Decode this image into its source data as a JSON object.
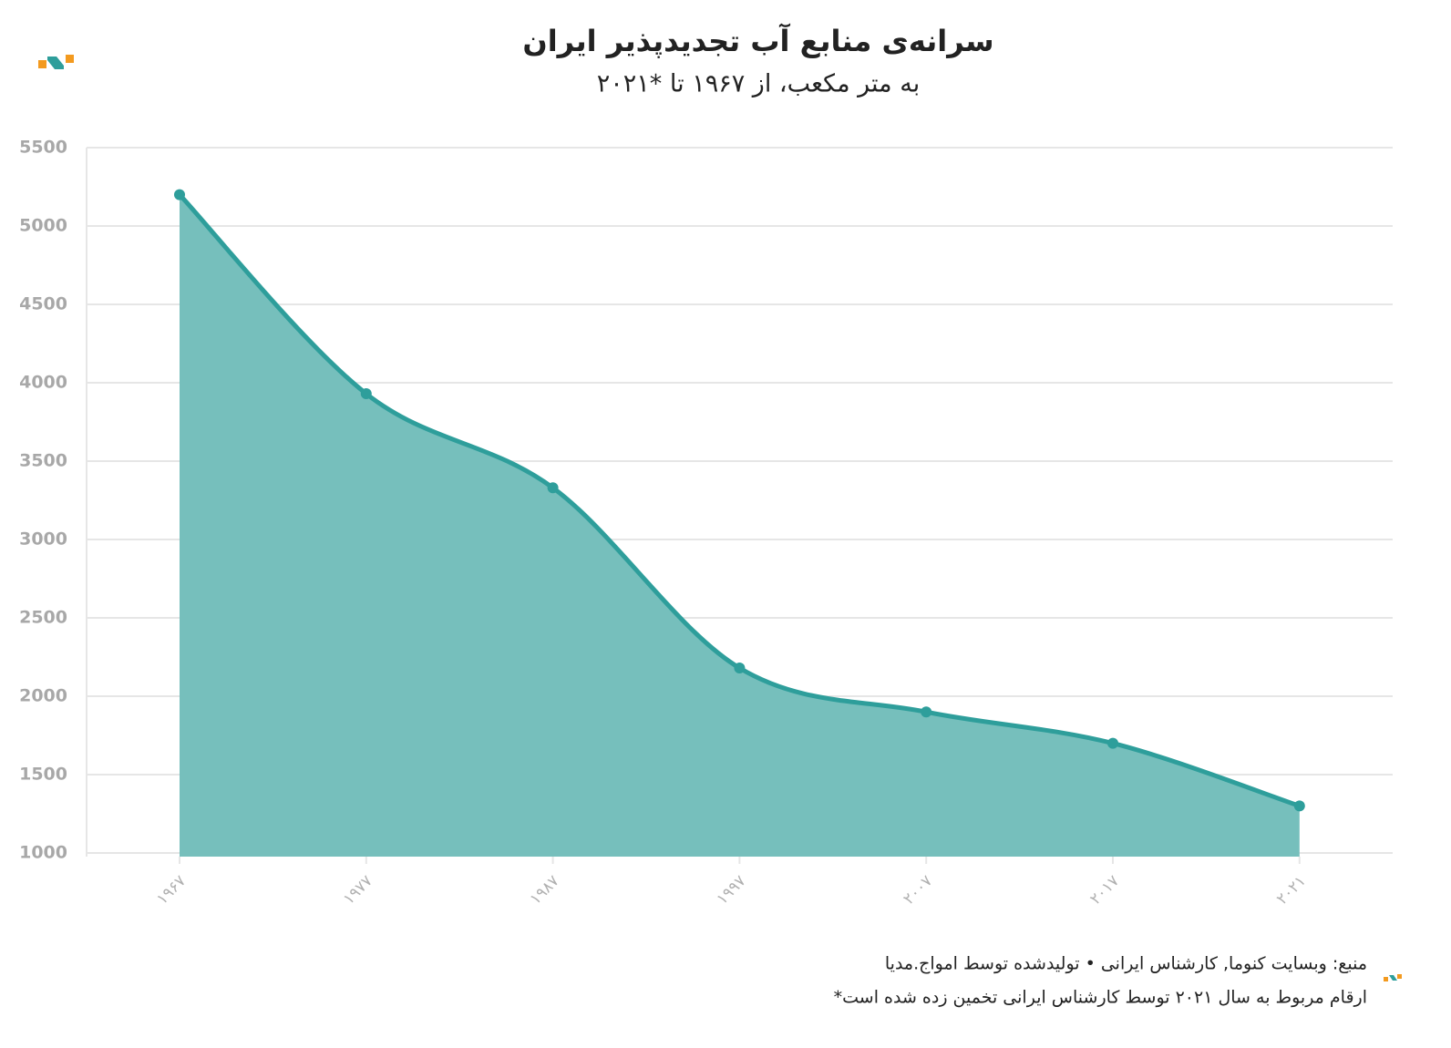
{
  "chart_data": {
    "type": "area",
    "title": "سرانه‌ی منابع آب تجدیدپذیر ایران",
    "subtitle": "به متر مکعب، از ۱۹۶۷ تا *۲۰۲۱",
    "categories": [
      "۱۹۶۷",
      "۱۹۷۷",
      "۱۹۸۷",
      "۱۹۹۷",
      "۲۰۰۷",
      "۲۰۱۷",
      "۲۰۲۱"
    ],
    "values": [
      5200,
      3930,
      3330,
      2180,
      1900,
      1700,
      1300
    ],
    "color": "#2e9e9b",
    "fill": "#76bfbc",
    "ylim": [
      1000,
      5500
    ],
    "yticks": [
      1000,
      1500,
      2000,
      2500,
      3000,
      3500,
      4000,
      4500,
      5000,
      5500
    ],
    "grid": true,
    "source": "منبع: وبسایت کنوما, کارشناس ایرانی • تولیدشده توسط امواج.مدیا",
    "note": "ارقام مربوط به سال ۲۰۲۱ توسط کارشناس ایرانی تخمین زده شده است*"
  }
}
